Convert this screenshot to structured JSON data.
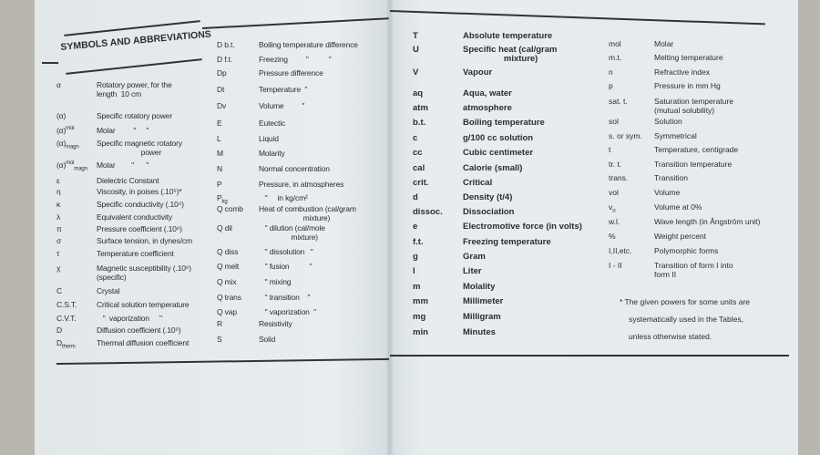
{
  "heading": "SYMBOLS AND ABBREVIATIONS",
  "left_page": {
    "column1": [
      {
        "symbol": "α",
        "desc": "Rotatory power, for the\nlength  10 cm"
      },
      {
        "symbol": "(α)",
        "desc": "Specific rotatory power"
      },
      {
        "symbol": "(α)",
        "sup": "mol",
        "desc": "Molar         \"     \""
      },
      {
        "symbol": "(α)",
        "sub": "magn",
        "desc": "Specific magnetic rotatory\n                      power"
      },
      {
        "symbol": "(α)",
        "sup": "mol",
        "sub": "magn",
        "desc": "Molar        \"      \""
      },
      {
        "symbol": "ε",
        "desc": "Dielectric Constant"
      },
      {
        "symbol": "η",
        "desc": "Viscosity, in poises (.10⁵)*"
      },
      {
        "symbol": "κ",
        "desc": "Specific conductivity (.10⁴)"
      },
      {
        "symbol": "λ",
        "desc": "Equivalent conductivity"
      },
      {
        "symbol": "π",
        "desc": "Pressure coefficient (.10⁶)"
      },
      {
        "symbol": "σ",
        "desc": "Surface tension, in dynes/cm"
      },
      {
        "symbol": "τ",
        "desc": "Temperature coefficient"
      },
      {
        "symbol": "χ",
        "desc": "Magnetic susceptibility (.10⁶)\n(specific)"
      },
      {
        "symbol": "C",
        "desc": "Crystal"
      },
      {
        "symbol": "C.S.T.",
        "desc": "Critical solution temperature"
      },
      {
        "symbol": "C.V.T.",
        "desc": "   \"  vaporization     \""
      },
      {
        "symbol": "D",
        "desc": "Diffusion coefficient (.10⁵)"
      },
      {
        "symbol": "D",
        "sub": "therm",
        "desc": "Thermal diffusion coefficient"
      }
    ],
    "column2": [
      {
        "symbol": "D b.t.",
        "desc": "Boiling temperature difference"
      },
      {
        "symbol": "D f.t.",
        "desc": "Freezing         \"          \""
      },
      {
        "symbol": "Dp",
        "desc": "Pressure difference"
      },
      {
        "symbol": "Dt",
        "desc": "Temperature  \""
      },
      {
        "symbol": "Dv",
        "desc": "Volume         \""
      },
      {
        "symbol": "E",
        "desc": "Eutectic"
      },
      {
        "symbol": "L",
        "desc": "Liquid"
      },
      {
        "symbol": "M",
        "desc": "Molarity"
      },
      {
        "symbol": "N",
        "desc": "Normal concentration"
      },
      {
        "symbol": "P",
        "desc": "Pressure, in atmospheres"
      },
      {
        "symbol": "P",
        "sub": "kg",
        "desc": "   \"     in kg/cm²"
      },
      {
        "symbol": "Q comb",
        "desc": "Heat of combustion (cal/gram\n                      mixture)"
      },
      {
        "symbol": "Q dil",
        "desc": "   \" dilution (cal/mole\n                mixture)"
      },
      {
        "symbol": "Q diss",
        "desc": "   \" dissolution   \""
      },
      {
        "symbol": "Q melt",
        "desc": "   \" fusion          \""
      },
      {
        "symbol": "Q mix",
        "desc": "   \" mixing"
      },
      {
        "symbol": "Q trans",
        "desc": "   \" transition    \""
      },
      {
        "symbol": "Q vap",
        "desc": "   \" vaporization  \""
      },
      {
        "symbol": "R",
        "desc": "Resistivity"
      },
      {
        "symbol": "S",
        "desc": "Solid"
      }
    ]
  },
  "right_page": {
    "column1": [
      {
        "symbol": "T",
        "desc": "Absolute temperature"
      },
      {
        "symbol": "U",
        "desc": "Specific heat (cal/gram\n                 mixture)"
      },
      {
        "symbol": "V",
        "desc": "Vapour"
      },
      {
        "symbol": "aq",
        "desc": "Aqua, water"
      },
      {
        "symbol": "atm",
        "desc": "atmosphere"
      },
      {
        "symbol": "b.t.",
        "desc": "Boiling temperature"
      },
      {
        "symbol": "c",
        "desc": "g/100 cc solution"
      },
      {
        "symbol": "cc",
        "desc": "Cubic centimeter"
      },
      {
        "symbol": "cal",
        "desc": "Calorie (small)"
      },
      {
        "symbol": "crit.",
        "desc": "Critical"
      },
      {
        "symbol": "d",
        "desc": "Density (t/4)"
      },
      {
        "symbol": "dissoc.",
        "desc": "Dissociation"
      },
      {
        "symbol": "e",
        "desc": "Electromotive force (in volts)"
      },
      {
        "symbol": "f.t.",
        "desc": "Freezing temperature"
      },
      {
        "symbol": "g",
        "desc": "Gram"
      },
      {
        "symbol": "l",
        "desc": "Liter"
      },
      {
        "symbol": "m",
        "desc": "Molality"
      },
      {
        "symbol": "mm",
        "desc": "Millimeter"
      },
      {
        "symbol": "mg",
        "desc": "Milligram"
      },
      {
        "symbol": "min",
        "desc": "Minutes"
      }
    ],
    "column2": [
      {
        "symbol": "mol",
        "desc": "Molar"
      },
      {
        "symbol": "m.t.",
        "desc": "Melting temperature"
      },
      {
        "symbol": "n",
        "desc": "Refractive index"
      },
      {
        "symbol": "p",
        "desc": "Pressure in mm Hg"
      },
      {
        "symbol": "sat. t.",
        "desc": "Saturation temperature\n(mutual solubility)"
      },
      {
        "symbol": "sol",
        "desc": "Solution"
      },
      {
        "symbol": "s. or sym.",
        "desc": "Symmetrical"
      },
      {
        "symbol": "t",
        "desc": "Temperature, centigrade"
      },
      {
        "symbol": "tr. t.",
        "desc": "Transition temperature"
      },
      {
        "symbol": "trans.",
        "desc": "Transition"
      },
      {
        "symbol": "vol",
        "desc": "Volume"
      },
      {
        "symbol": "v",
        "sub": "o",
        "desc": "Volume at 0%"
      },
      {
        "symbol": "w.l.",
        "desc": "Wave length (in Ångström unit)"
      },
      {
        "symbol": "%",
        "desc": "Weight percent"
      },
      {
        "symbol": "I,II,etc.",
        "desc": "Polymorphic forms"
      },
      {
        "symbol": "I - II",
        "desc": "Transition of form I into\nform II"
      }
    ],
    "footnote": [
      "* The given powers for some units are",
      "systematically used in the Tables,",
      "unless otherwise stated."
    ]
  }
}
